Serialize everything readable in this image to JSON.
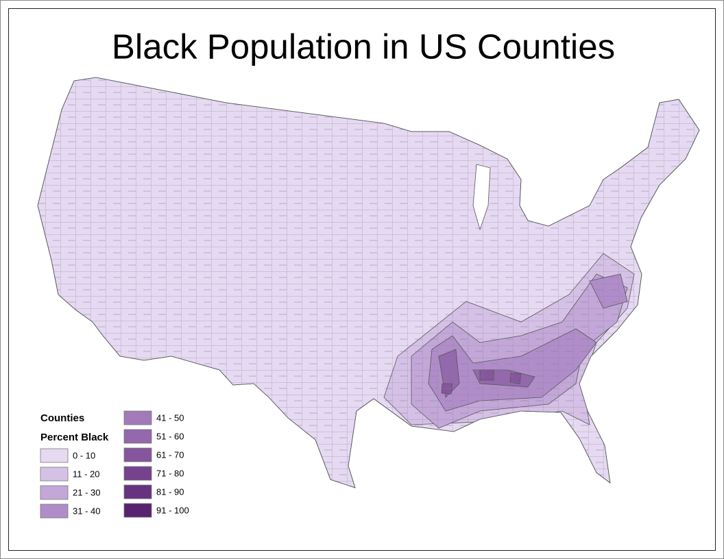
{
  "title": "Black Population in US Counties",
  "legend": {
    "heading": "Counties",
    "subheading": "Percent Black",
    "items": [
      {
        "label": "0 - 10",
        "color": "#e6d9f2"
      },
      {
        "label": "11 - 20",
        "color": "#d5c1e6"
      },
      {
        "label": "21 - 30",
        "color": "#c2a7d8"
      },
      {
        "label": "31 - 40",
        "color": "#b08dc9"
      },
      {
        "label": "41 - 50",
        "color": "#a27ab9"
      },
      {
        "label": "51 - 60",
        "color": "#9368ac"
      },
      {
        "label": "61 - 70",
        "color": "#85569d"
      },
      {
        "label": "71 - 80",
        "color": "#76428e"
      },
      {
        "label": "81 - 90",
        "color": "#673280"
      },
      {
        "label": "91 - 100",
        "color": "#582270"
      }
    ]
  }
}
